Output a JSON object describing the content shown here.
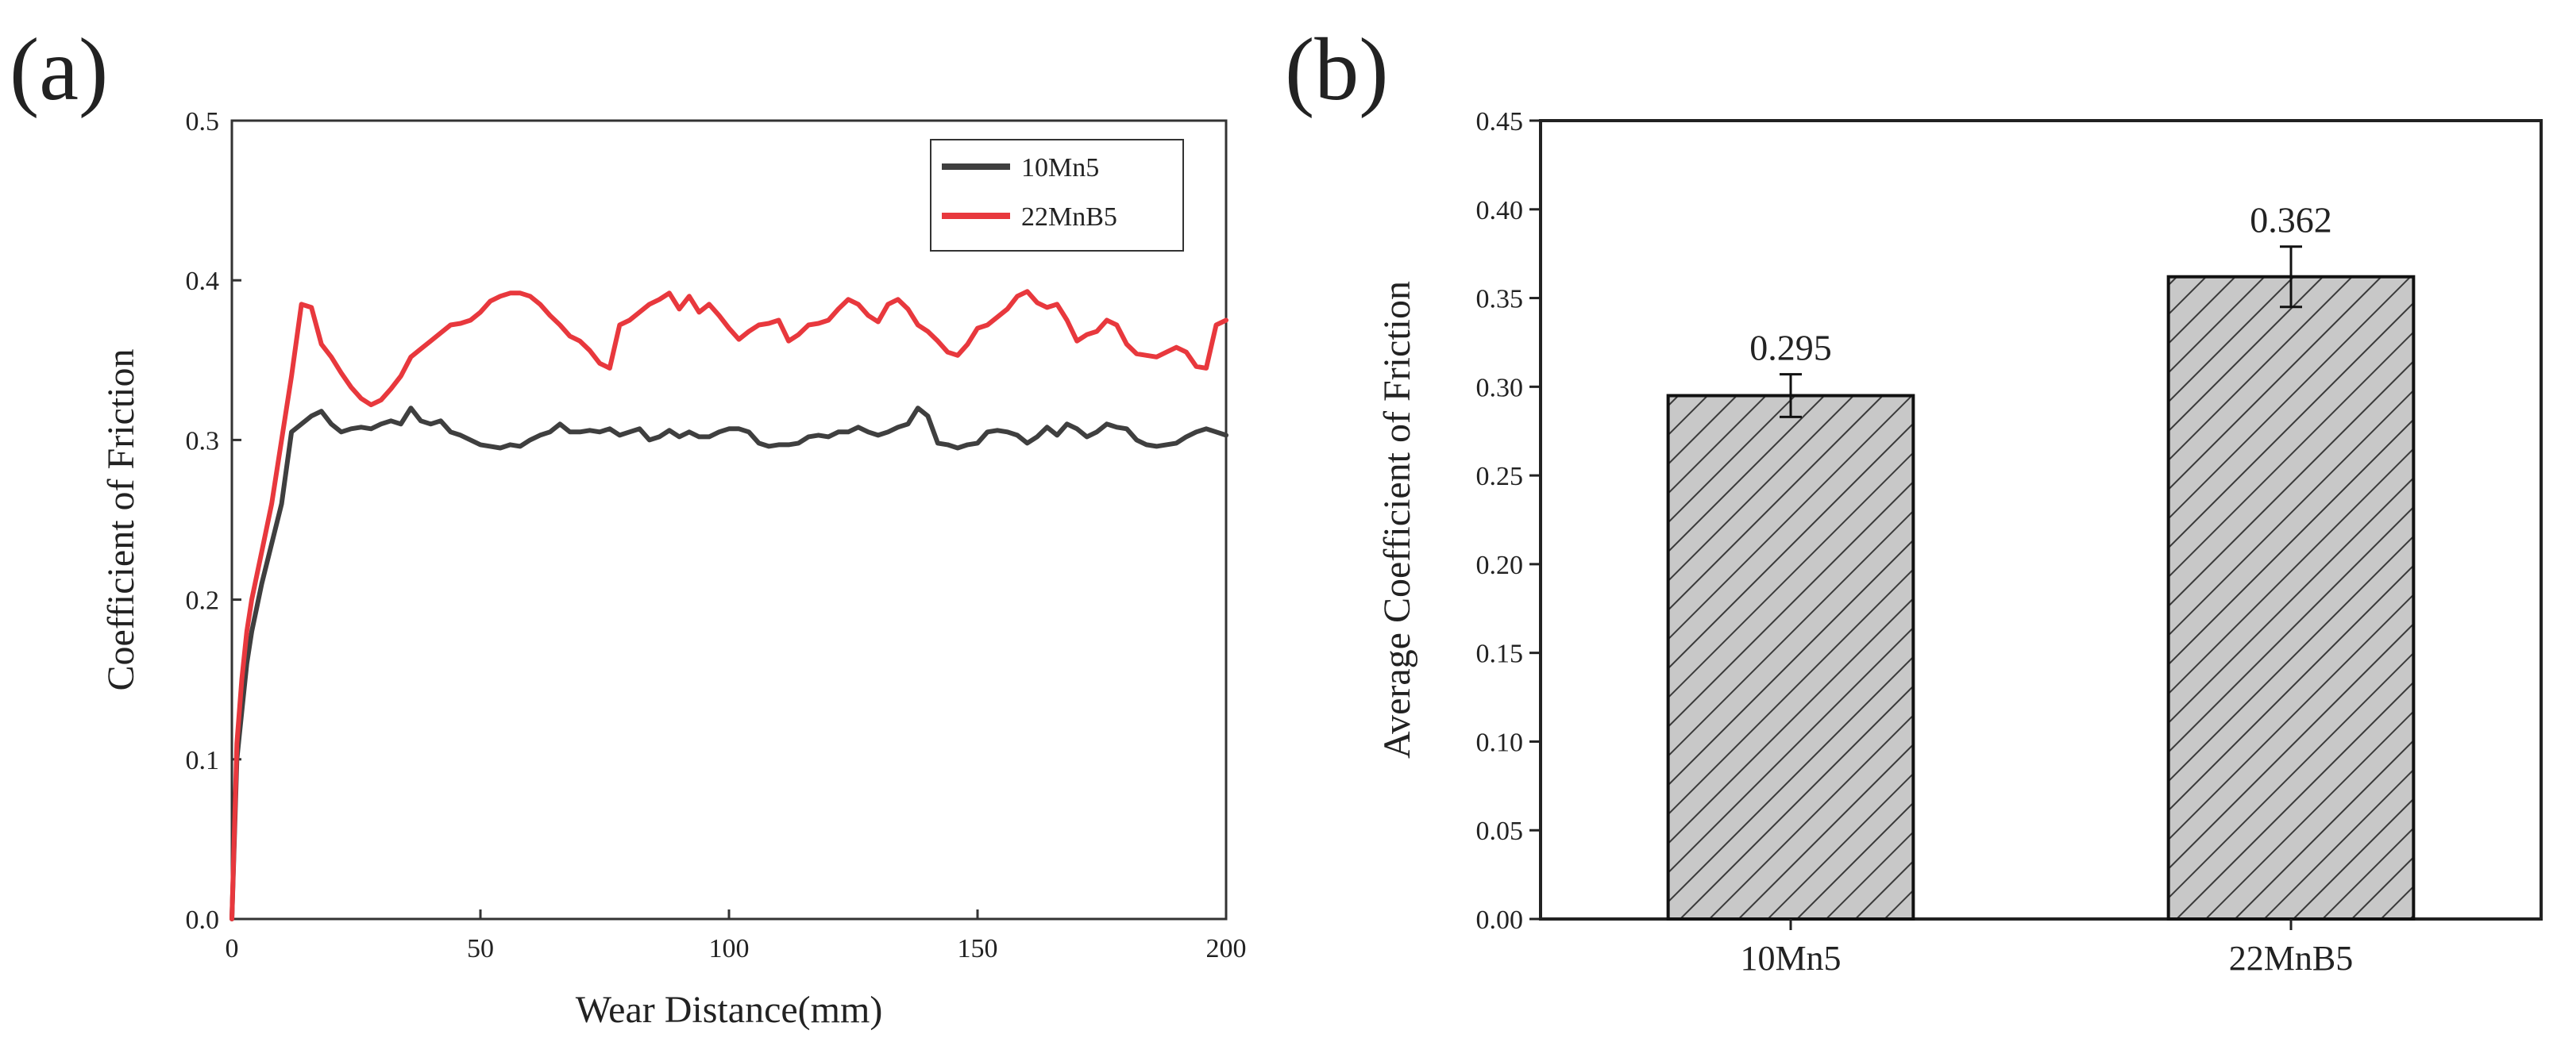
{
  "panels": {
    "a_label": "(a)",
    "b_label": "(b)"
  },
  "chart_data": [
    {
      "type": "line",
      "title": "",
      "xlabel": "Wear Distance(mm)",
      "ylabel": "Coefficient of Friction",
      "xlim": [
        0,
        200
      ],
      "ylim": [
        0,
        0.5
      ],
      "x_ticks": [
        "0",
        "50",
        "100",
        "150",
        "200"
      ],
      "y_ticks": [
        "0.0",
        "0.1",
        "0.2",
        "0.3",
        "0.4",
        "0.5"
      ],
      "legend_position": "top-right",
      "grid": false,
      "series": [
        {
          "name": "10Mn5",
          "color": "#3f3f3f",
          "x": [
            0,
            1,
            2,
            3,
            4,
            5,
            6,
            8,
            10,
            12,
            14,
            16,
            18,
            20,
            22,
            24,
            26,
            28,
            30,
            32,
            34,
            36,
            38,
            40,
            42,
            44,
            46,
            48,
            50,
            52,
            54,
            56,
            58,
            60,
            62,
            64,
            66,
            68,
            70,
            72,
            74,
            76,
            78,
            80,
            82,
            84,
            86,
            88,
            90,
            92,
            94,
            96,
            98,
            100,
            102,
            104,
            106,
            108,
            110,
            112,
            114,
            116,
            118,
            120,
            122,
            124,
            126,
            128,
            130,
            132,
            134,
            136,
            138,
            140,
            142,
            144,
            146,
            148,
            150,
            152,
            154,
            156,
            158,
            160,
            162,
            164,
            166,
            168,
            170,
            172,
            174,
            176,
            178,
            180,
            182,
            184,
            186,
            188,
            190,
            192,
            194,
            196,
            198,
            200
          ],
          "y": [
            0.0,
            0.1,
            0.13,
            0.16,
            0.18,
            0.195,
            0.21,
            0.235,
            0.26,
            0.305,
            0.31,
            0.315,
            0.318,
            0.31,
            0.305,
            0.307,
            0.308,
            0.307,
            0.31,
            0.312,
            0.31,
            0.32,
            0.312,
            0.31,
            0.312,
            0.305,
            0.303,
            0.3,
            0.297,
            0.296,
            0.295,
            0.297,
            0.296,
            0.3,
            0.303,
            0.305,
            0.31,
            0.305,
            0.305,
            0.306,
            0.305,
            0.307,
            0.303,
            0.305,
            0.307,
            0.3,
            0.302,
            0.306,
            0.302,
            0.305,
            0.302,
            0.302,
            0.305,
            0.307,
            0.307,
            0.305,
            0.298,
            0.296,
            0.297,
            0.297,
            0.298,
            0.302,
            0.303,
            0.302,
            0.305,
            0.305,
            0.308,
            0.305,
            0.303,
            0.305,
            0.308,
            0.31,
            0.32,
            0.315,
            0.298,
            0.297,
            0.295,
            0.297,
            0.298,
            0.305,
            0.306,
            0.305,
            0.303,
            0.298,
            0.302,
            0.308,
            0.303,
            0.31,
            0.307,
            0.302,
            0.305,
            0.31,
            0.308,
            0.307,
            0.3,
            0.297,
            0.296,
            0.297,
            0.298,
            0.302,
            0.305,
            0.307,
            0.305,
            0.303
          ]
        },
        {
          "name": "22MnB5",
          "color": "#e8383d",
          "x": [
            0,
            1,
            2,
            3,
            4,
            5,
            6,
            8,
            10,
            12,
            14,
            16,
            18,
            20,
            22,
            24,
            26,
            28,
            30,
            32,
            34,
            36,
            38,
            40,
            42,
            44,
            46,
            48,
            50,
            52,
            54,
            56,
            58,
            60,
            62,
            64,
            66,
            68,
            70,
            72,
            74,
            76,
            78,
            80,
            82,
            84,
            86,
            88,
            90,
            92,
            94,
            96,
            98,
            100,
            102,
            104,
            106,
            108,
            110,
            112,
            114,
            116,
            118,
            120,
            122,
            124,
            126,
            128,
            130,
            132,
            134,
            136,
            138,
            140,
            142,
            144,
            146,
            148,
            150,
            152,
            154,
            156,
            158,
            160,
            162,
            164,
            166,
            168,
            170,
            172,
            174,
            176,
            178,
            180,
            182,
            184,
            186,
            188,
            190,
            192,
            194,
            196,
            198,
            200
          ],
          "y": [
            0.0,
            0.11,
            0.15,
            0.18,
            0.2,
            0.215,
            0.23,
            0.26,
            0.3,
            0.34,
            0.385,
            0.383,
            0.36,
            0.352,
            0.342,
            0.333,
            0.326,
            0.322,
            0.325,
            0.332,
            0.34,
            0.352,
            0.357,
            0.362,
            0.367,
            0.372,
            0.373,
            0.375,
            0.38,
            0.387,
            0.39,
            0.392,
            0.392,
            0.39,
            0.385,
            0.378,
            0.372,
            0.365,
            0.362,
            0.356,
            0.348,
            0.345,
            0.372,
            0.375,
            0.38,
            0.385,
            0.388,
            0.392,
            0.382,
            0.39,
            0.38,
            0.385,
            0.378,
            0.37,
            0.363,
            0.368,
            0.372,
            0.373,
            0.375,
            0.362,
            0.366,
            0.372,
            0.373,
            0.375,
            0.382,
            0.388,
            0.385,
            0.378,
            0.374,
            0.385,
            0.388,
            0.382,
            0.372,
            0.368,
            0.362,
            0.355,
            0.353,
            0.36,
            0.37,
            0.372,
            0.377,
            0.382,
            0.39,
            0.393,
            0.386,
            0.383,
            0.385,
            0.375,
            0.362,
            0.366,
            0.368,
            0.375,
            0.372,
            0.36,
            0.354,
            0.353,
            0.352,
            0.355,
            0.358,
            0.355,
            0.346,
            0.345,
            0.372,
            0.375
          ]
        }
      ]
    },
    {
      "type": "bar",
      "title": "",
      "xlabel": "",
      "ylabel": "Average Coefficient of Friction",
      "ylim": [
        0,
        0.45
      ],
      "y_ticks": [
        "0.00",
        "0.05",
        "0.10",
        "0.15",
        "0.20",
        "0.25",
        "0.30",
        "0.35",
        "0.40",
        "0.45"
      ],
      "categories": [
        "10Mn5",
        "22MnB5"
      ],
      "values": [
        0.295,
        0.362
      ],
      "value_labels": [
        "0.295",
        "0.362"
      ],
      "error": [
        0.012,
        0.017
      ],
      "bar_fill": "#c8c8c8",
      "bar_hatch": "diagonal",
      "grid": false
    }
  ]
}
